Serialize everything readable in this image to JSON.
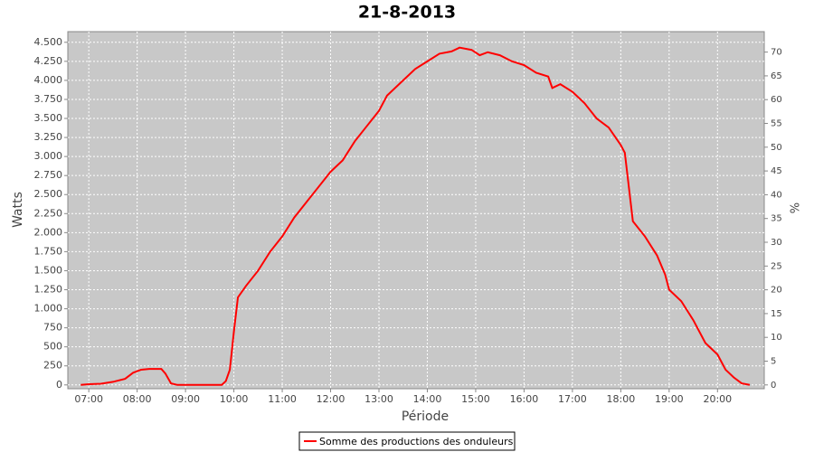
{
  "chart_data": {
    "type": "line",
    "title": "21-8-2013",
    "x_label": "Période",
    "y_label": "Watts",
    "y2_label": "%",
    "x": [
      "06:50",
      "07:00",
      "07:15",
      "07:30",
      "07:45",
      "07:55",
      "08:05",
      "08:15",
      "08:30",
      "08:35",
      "08:42",
      "08:50",
      "09:00",
      "09:30",
      "09:45",
      "09:50",
      "09:55",
      "10:00",
      "10:05",
      "10:15",
      "10:30",
      "10:45",
      "11:00",
      "11:15",
      "11:30",
      "11:45",
      "12:00",
      "12:15",
      "12:30",
      "12:45",
      "13:00",
      "13:10",
      "13:30",
      "13:45",
      "14:00",
      "14:15",
      "14:30",
      "14:40",
      "14:55",
      "15:05",
      "15:15",
      "15:30",
      "15:45",
      "16:00",
      "16:15",
      "16:30",
      "16:35",
      "16:45",
      "17:00",
      "17:15",
      "17:30",
      "17:45",
      "18:00",
      "18:05",
      "18:10",
      "18:15",
      "18:30",
      "18:45",
      "18:55",
      "19:00",
      "19:15",
      "19:30",
      "19:45",
      "20:00",
      "20:10",
      "20:20",
      "20:30",
      "20:40"
    ],
    "series": [
      {
        "name": "Somme des productions des onduleurs",
        "color": "#ff0000",
        "values": [
          0,
          10,
          15,
          40,
          80,
          160,
          200,
          210,
          210,
          150,
          20,
          0,
          0,
          0,
          0,
          50,
          200,
          700,
          1150,
          1300,
          1500,
          1750,
          1950,
          2200,
          2400,
          2600,
          2800,
          2950,
          3200,
          3400,
          3600,
          3800,
          4000,
          4150,
          4250,
          4350,
          4380,
          4430,
          4400,
          4330,
          4370,
          4330,
          4250,
          4200,
          4100,
          4050,
          3900,
          3950,
          3850,
          3700,
          3500,
          3380,
          3150,
          3050,
          2600,
          2150,
          1950,
          1700,
          1450,
          1250,
          1100,
          850,
          550,
          400,
          200,
          100,
          20,
          0
        ]
      }
    ],
    "xlim": [
      "06:34",
      "20:58"
    ],
    "xticks": [
      "07:00",
      "08:00",
      "09:00",
      "10:00",
      "11:00",
      "12:00",
      "13:00",
      "14:00",
      "15:00",
      "16:00",
      "17:00",
      "18:00",
      "19:00",
      "20:00"
    ],
    "ylim": [
      -50,
      4640
    ],
    "yticks": [
      0,
      250,
      500,
      750,
      {
        "value": 1000,
        "label": "1.000"
      },
      {
        "value": 1250,
        "label": "1.250"
      },
      {
        "value": 1500,
        "label": "1.500"
      },
      {
        "value": 1750,
        "label": "1.750"
      },
      {
        "value": 2000,
        "label": "2.000"
      },
      {
        "value": 2250,
        "label": "2.250"
      },
      {
        "value": 2500,
        "label": "2.500"
      },
      {
        "value": 2750,
        "label": "2.750"
      },
      {
        "value": 3000,
        "label": "3.000"
      },
      {
        "value": 3250,
        "label": "3.250"
      },
      {
        "value": 3500,
        "label": "3.500"
      },
      {
        "value": 3750,
        "label": "3.750"
      },
      {
        "value": 4000,
        "label": "4.000"
      },
      {
        "value": 4250,
        "label": "4.250"
      },
      {
        "value": 4500,
        "label": "4.500"
      }
    ],
    "y2lim": [
      -0.8,
      74.3
    ],
    "y2ticks": [
      0,
      5,
      10,
      15,
      20,
      25,
      30,
      35,
      40,
      45,
      50,
      55,
      60,
      65,
      70
    ],
    "grid": true,
    "legend": "bottom",
    "plot_background": "#c8c8c8"
  }
}
